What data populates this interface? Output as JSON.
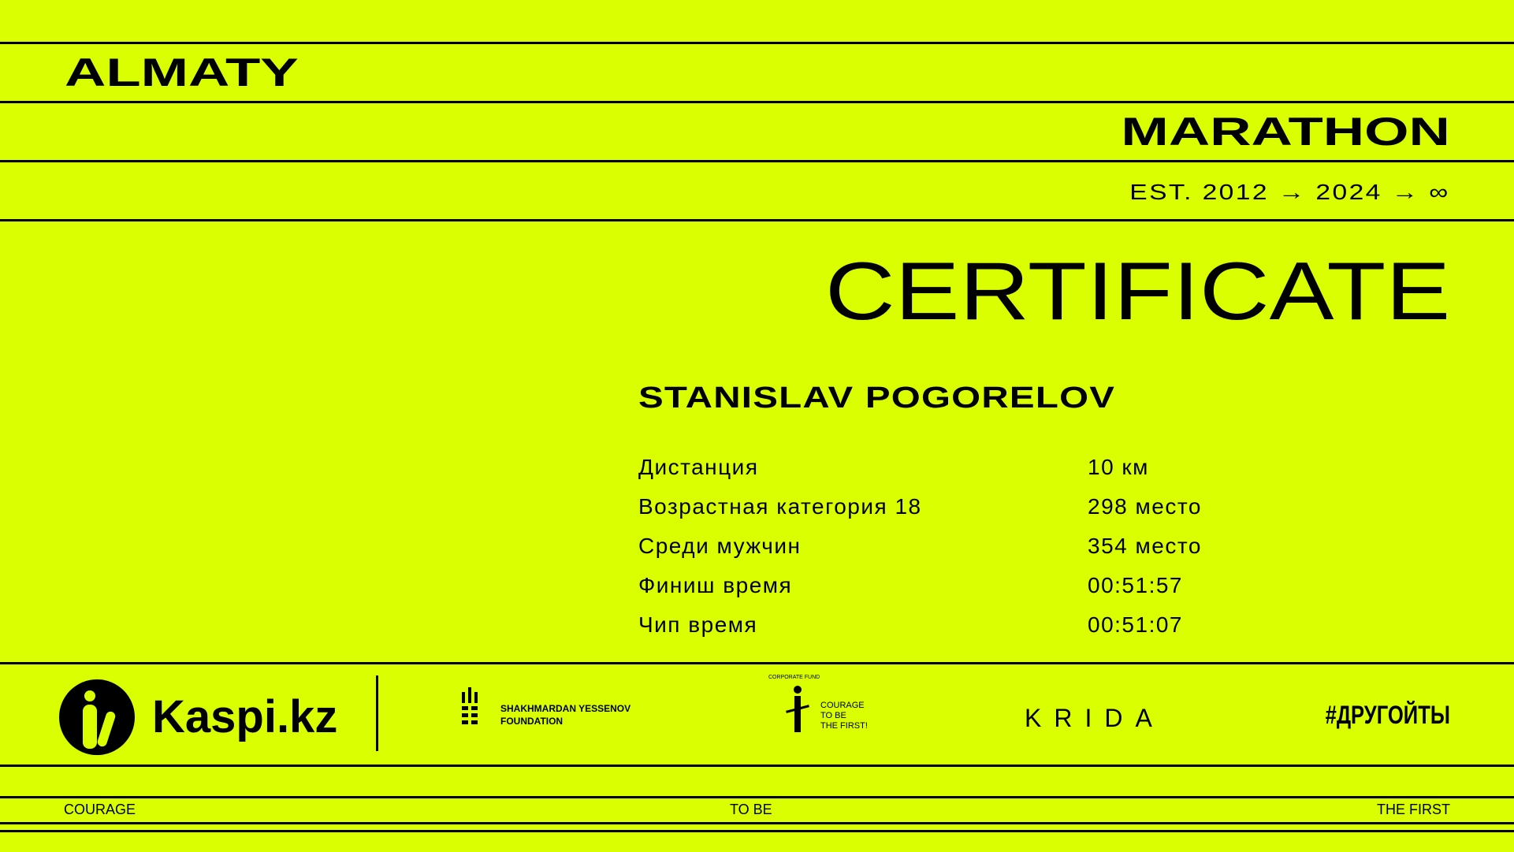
{
  "header": {
    "line1": "ALMATY",
    "line2": "MARATHON",
    "tagline": "EST. 2012 → 2024 → ∞"
  },
  "certificate": {
    "title": "CERTIFICATE",
    "name": "STANISLAV POGORELOV",
    "rows": [
      {
        "label": "Дистанция",
        "value": "10 км"
      },
      {
        "label": "Возрастная категория 18",
        "value": "298 место"
      },
      {
        "label": "Среди мужчин",
        "value": "354 место"
      },
      {
        "label": "Финиш время",
        "value": "00:51:57"
      },
      {
        "label": "Чип время",
        "value": "00:51:07"
      }
    ]
  },
  "sponsors": {
    "kaspi": "Kaspi.kz",
    "foundation_line1": "SHAKHMARDAN YESSENOV",
    "foundation_line2": "FOUNDATION",
    "fund_arc": "CORPORATE FUND",
    "fund_line1": "COURAGE",
    "fund_line2": "TO BE",
    "fund_line3": "THE FIRST!",
    "krida": "KRIDA",
    "hashtag": "#ДРУГОЙТЫ"
  },
  "footer": {
    "left": "COURAGE",
    "center": "TO BE",
    "right": "THE FIRST"
  },
  "colors": {
    "background": "#d9ff00",
    "ink": "#000000"
  }
}
